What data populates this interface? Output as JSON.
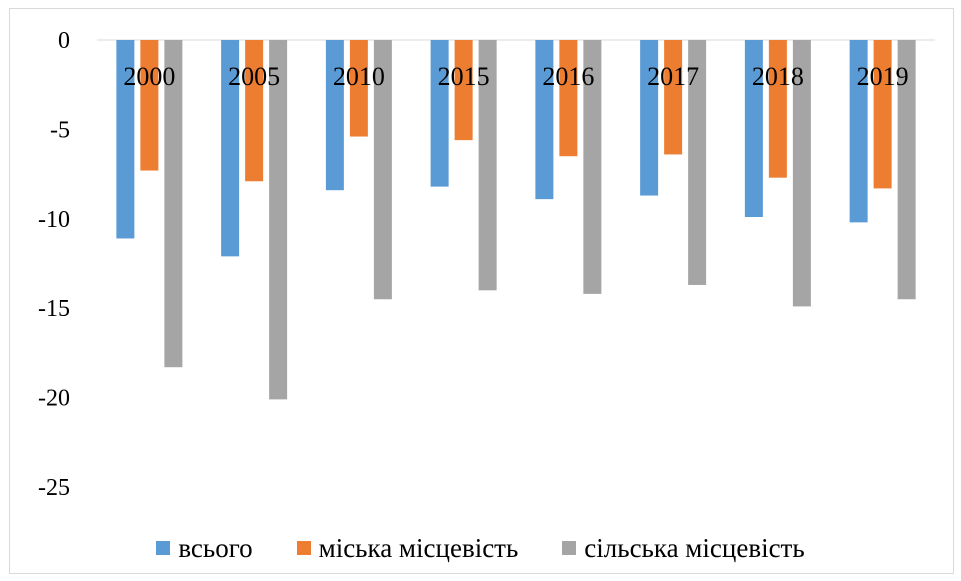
{
  "chart_data": {
    "type": "bar",
    "title": "",
    "xlabel": "",
    "ylabel": "",
    "categories": [
      "2000",
      "2005",
      "2010",
      "2015",
      "2016",
      "2017",
      "2018",
      "2019"
    ],
    "ylim": [
      -25,
      0
    ],
    "yticks": [
      "0",
      "-5",
      "-10",
      "-15",
      "-20",
      "-25"
    ],
    "grid": false,
    "legend_position": "bottom",
    "series": [
      {
        "name": "всього",
        "color": "#5b9bd5",
        "values": [
          -11.1,
          -12.1,
          -8.4,
          -8.2,
          -8.9,
          -8.7,
          -9.9,
          -10.2
        ]
      },
      {
        "name": "міська місцевість",
        "color": "#ed7d31",
        "values": [
          -7.3,
          -7.9,
          -5.4,
          -5.6,
          -6.5,
          -6.4,
          -7.7,
          -8.3
        ]
      },
      {
        "name": "сільська місцевість",
        "color": "#a5a5a5",
        "values": [
          -18.3,
          -20.1,
          -14.5,
          -14.0,
          -14.2,
          -13.7,
          -14.9,
          -14.5
        ]
      }
    ]
  }
}
